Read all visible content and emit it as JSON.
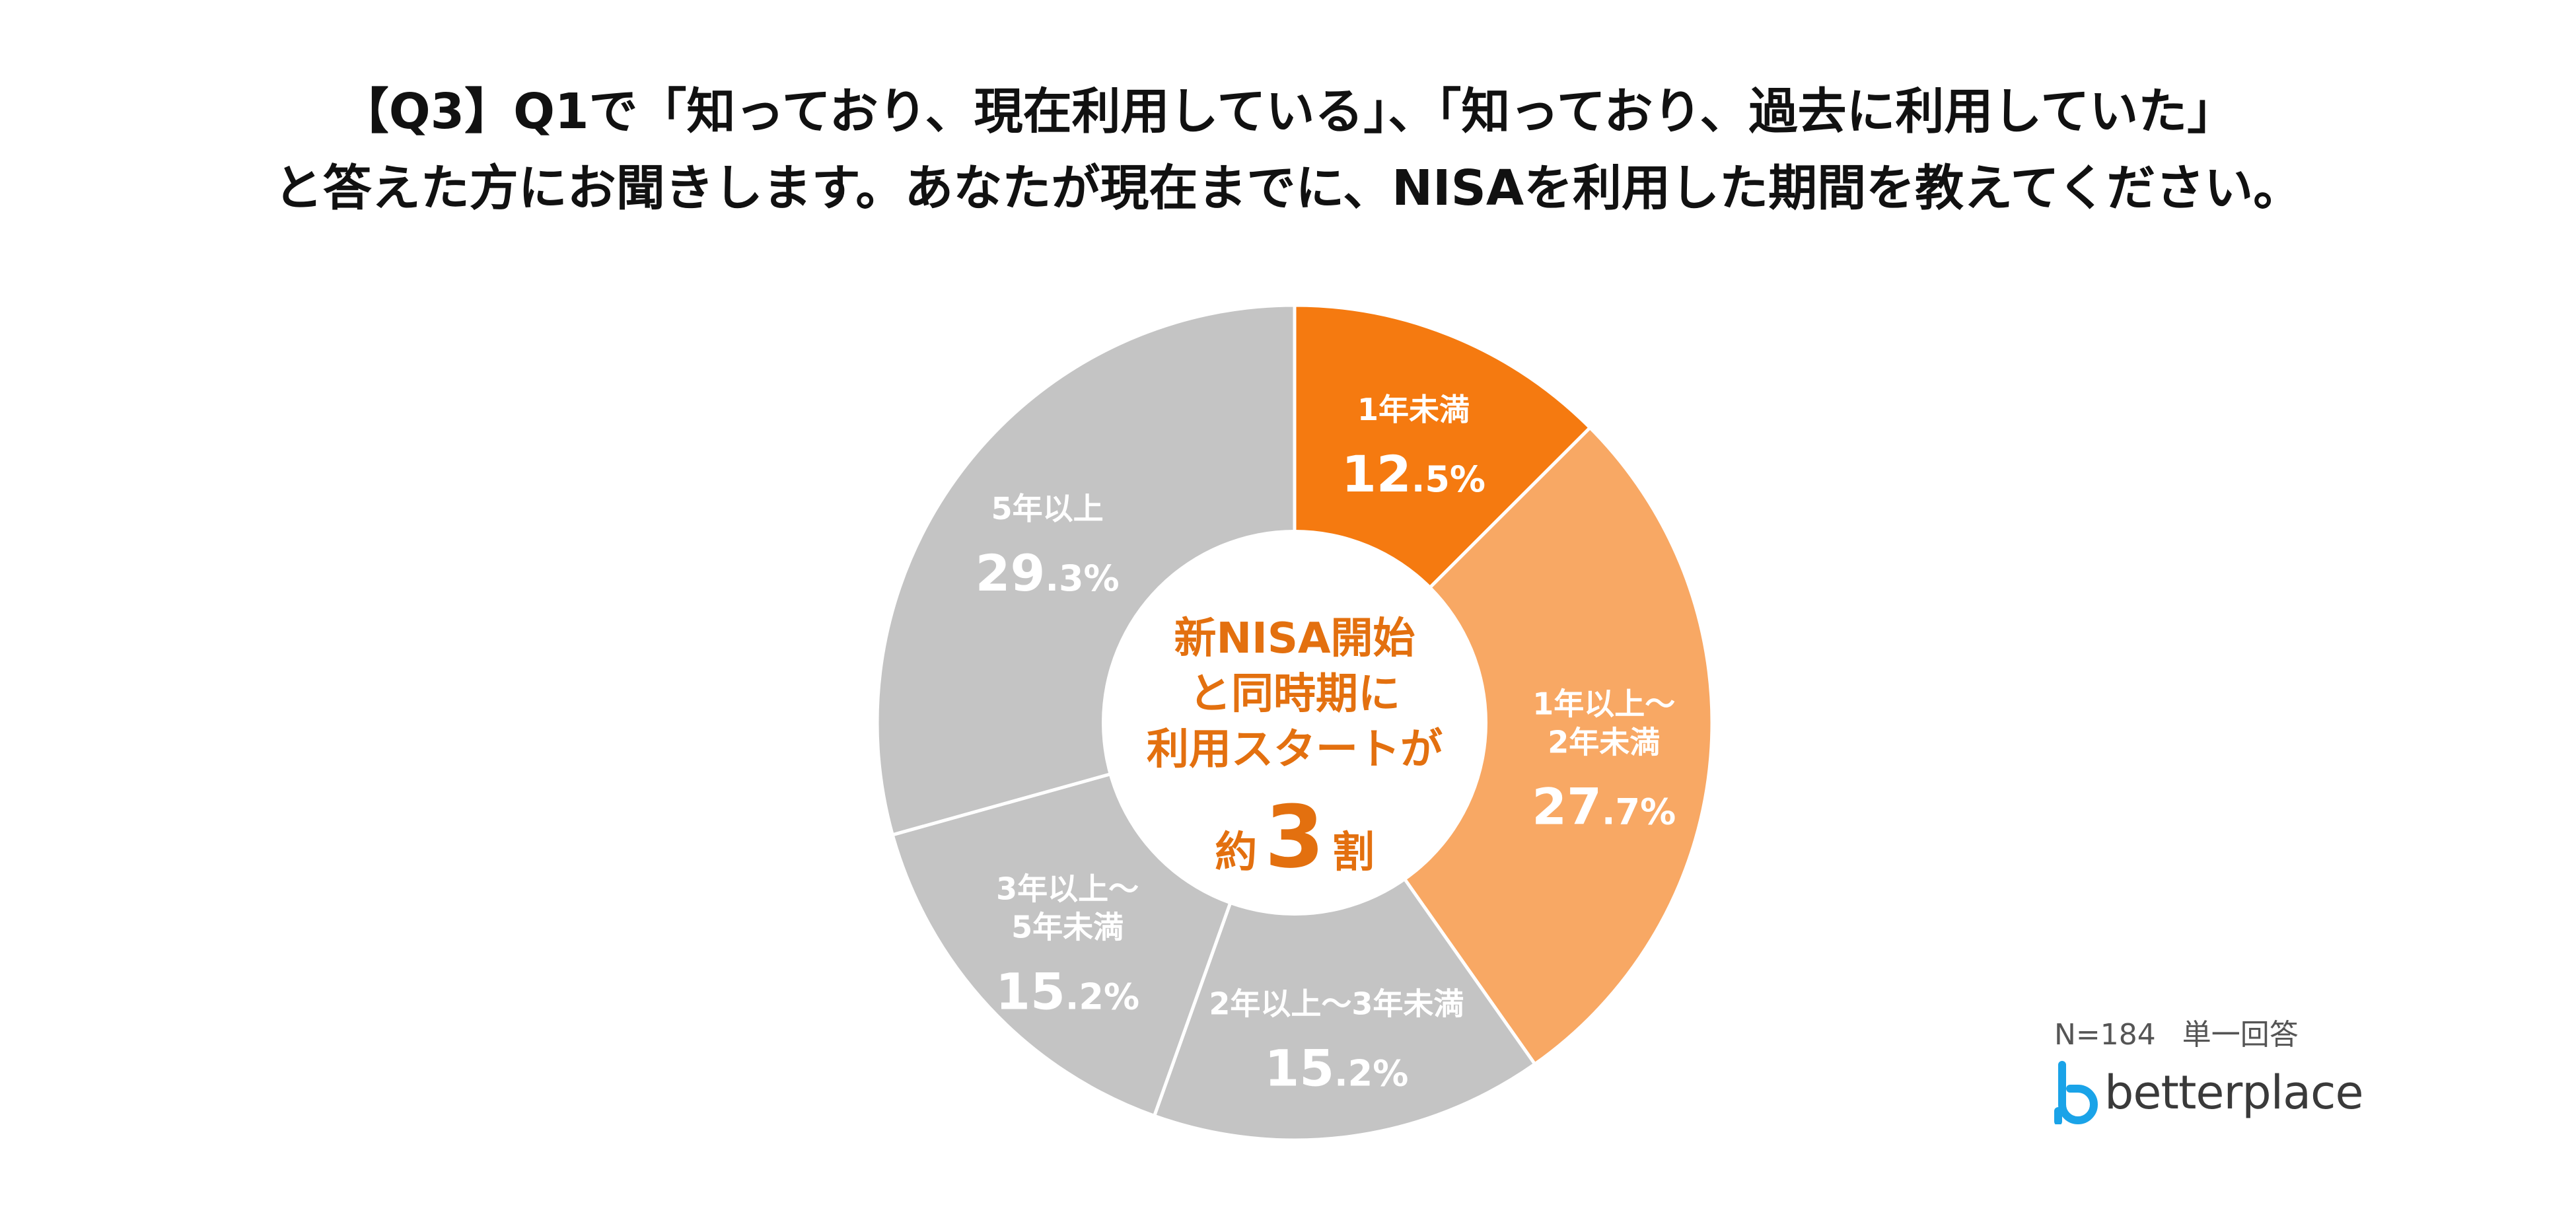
{
  "title": {
    "line1": "【Q3】Q1で「知っており、現在利用している」、「知っており、過去に利用していた」",
    "line2": "と答えた方にお聞きします。あなたが現在までに、NISAを利用した期間を教えてください。"
  },
  "chart_data": {
    "type": "pie",
    "variant": "donut",
    "unit": "%",
    "slices": [
      {
        "label": [
          "1年未満"
        ],
        "value": 12.5,
        "color": "#F57A10"
      },
      {
        "label": [
          "1年以上～",
          "2年未満"
        ],
        "value": 27.7,
        "color": "#F8A864"
      },
      {
        "label": [
          "2年以上～3年未満"
        ],
        "value": 15.2,
        "color": "#C4C4C4"
      },
      {
        "label": [
          "3年以上～",
          "5年未満"
        ],
        "value": 15.2,
        "color": "#C4C4C4"
      },
      {
        "label": [
          "5年以上"
        ],
        "value": 29.3,
        "color": "#C4C4C4"
      }
    ],
    "center_text": [
      "新NISA開始",
      "と同時期に",
      "利用スタートが"
    ],
    "center_emphasis": {
      "prefix": "約",
      "number": "3",
      "suffix": "割"
    }
  },
  "footnote": {
    "sample": "N=184",
    "type": "単一回答"
  },
  "brand": {
    "name": "betterplace",
    "color": "#1AA3E8"
  }
}
